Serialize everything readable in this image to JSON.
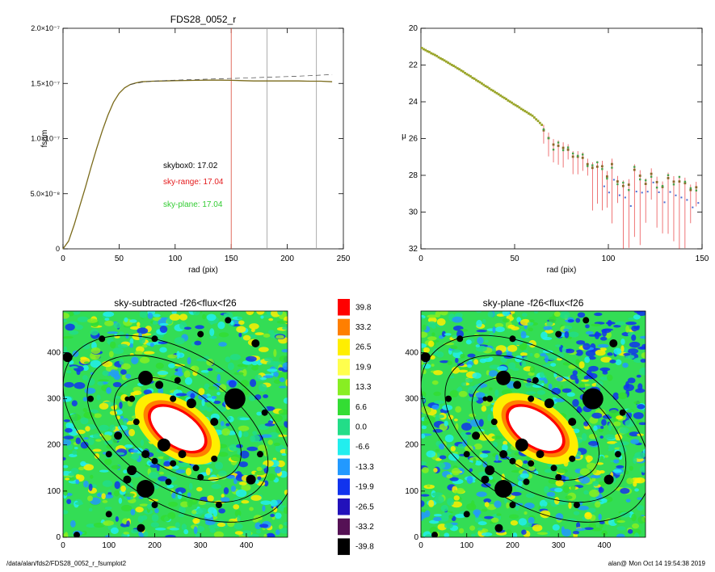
{
  "colors": {
    "sky_range": "#e41a1c",
    "sky_plane": "#33cc33",
    "skybox": "#000000",
    "curve": "#7a6a1a",
    "marker_red": "#d94a3a",
    "marker_gray": "#999999"
  },
  "footer": {
    "path": "/data/alan/fds2/FDS28_0052_r_fsumplot2",
    "stamp": "alan@  Mon Oct 14 19:54:38 2019"
  },
  "chart_data": [
    {
      "id": "fsum",
      "type": "line",
      "title": "FDS28_0052_r",
      "xlabel": "rad (pix)",
      "ylabel": "fsum",
      "xlim": [
        0,
        250
      ],
      "ylim": [
        0,
        2e-07
      ],
      "xticks": [
        0,
        50,
        100,
        150,
        200,
        250
      ],
      "yticks": [
        {
          "v": 0,
          "label": "0"
        },
        {
          "v": 5e-08,
          "label": "5.0×10⁻⁸"
        },
        {
          "v": 1e-07,
          "label": "1.0×10⁻⁷"
        },
        {
          "v": 1.5e-07,
          "label": "1.5×10⁻⁷"
        },
        {
          "v": 2e-07,
          "label": "2.0×10⁻⁷"
        }
      ],
      "vlines": [
        {
          "x": 150,
          "color": "marker_red"
        },
        {
          "x": 182,
          "color": "marker_gray"
        },
        {
          "x": 226,
          "color": "marker_gray"
        }
      ],
      "series": [
        {
          "style": "solid",
          "x": [
            0,
            5,
            10,
            15,
            20,
            25,
            30,
            35,
            40,
            45,
            50,
            55,
            60,
            65,
            70,
            80,
            90,
            100,
            110,
            120,
            130,
            140,
            150,
            160,
            170,
            180,
            190,
            200,
            210,
            220,
            230,
            240
          ],
          "y": [
            0,
            7e-09,
            2.2e-08,
            3.9e-08,
            5.6e-08,
            7.4e-08,
            9.1e-08,
            1.07e-07,
            1.21e-07,
            1.33e-07,
            1.41e-07,
            1.46e-07,
            1.49e-07,
            1.505e-07,
            1.515e-07,
            1.52e-07,
            1.522e-07,
            1.525e-07,
            1.527e-07,
            1.528e-07,
            1.53e-07,
            1.53e-07,
            1.528e-07,
            1.525e-07,
            1.522e-07,
            1.522e-07,
            1.522e-07,
            1.522e-07,
            1.522e-07,
            1.52e-07,
            1.52e-07,
            1.515e-07
          ]
        },
        {
          "style": "dashed",
          "x": [
            60,
            70,
            80,
            90,
            100,
            120,
            140,
            160,
            180,
            200,
            220,
            240
          ],
          "y": [
            1.49e-07,
            1.51e-07,
            1.52e-07,
            1.525e-07,
            1.53e-07,
            1.536e-07,
            1.542e-07,
            1.548e-07,
            1.555e-07,
            1.562e-07,
            1.57e-07,
            1.58e-07
          ]
        }
      ],
      "annotations": [
        {
          "key": "skybox",
          "text": "skybox0: 17.02",
          "color": "skybox"
        },
        {
          "key": "sky_range",
          "text": "sky-range: 17.04",
          "color": "sky_range"
        },
        {
          "key": "sky_plane",
          "text": "sky-plane: 17.04",
          "color": "sky_plane"
        }
      ]
    },
    {
      "id": "mu",
      "type": "scatter",
      "title": "",
      "xlabel": "rad (pix)",
      "ylabel": "μ",
      "xlim": [
        0,
        150
      ],
      "ylim": [
        32,
        20
      ],
      "xticks": [
        0,
        50,
        100,
        150
      ],
      "yticks": [
        20,
        22,
        24,
        26,
        28,
        30,
        32
      ],
      "profile": {
        "x": [
          0,
          10,
          20,
          30,
          40,
          50,
          60,
          65,
          70,
          80,
          90,
          100,
          110,
          120,
          130,
          140,
          150
        ],
        "y": [
          21.05,
          21.6,
          22.2,
          22.85,
          23.5,
          24.15,
          24.8,
          25.3,
          26.3,
          26.8,
          27.3,
          27.8,
          28.1,
          28.4,
          28.6,
          28.8,
          28.9
        ]
      }
    },
    {
      "id": "skysub",
      "type": "heatmap",
      "title": "sky-subtracted -f26<flux<f26",
      "xlim": [
        0,
        490
      ],
      "ylim": [
        0,
        490
      ],
      "xticks": [
        0,
        100,
        200,
        300,
        400
      ],
      "yticks": [
        0,
        100,
        200,
        300,
        400
      ]
    },
    {
      "id": "skyplane",
      "type": "heatmap",
      "title": "sky-plane -f26<flux<f26",
      "xlim": [
        0,
        490
      ],
      "ylim": [
        0,
        490
      ],
      "xticks": [
        0,
        100,
        200,
        300,
        400
      ],
      "yticks": [
        0,
        100,
        200,
        300,
        400
      ]
    },
    {
      "id": "colorbar",
      "type": "table",
      "levels": [
        {
          "label": "39.8",
          "color": "#ff0000"
        },
        {
          "label": "33.2",
          "color": "#ff7f00"
        },
        {
          "label": "26.5",
          "color": "#ffee00"
        },
        {
          "label": "19.9",
          "color": "#ffff4d"
        },
        {
          "label": "13.3",
          "color": "#88ee22"
        },
        {
          "label": "6.6",
          "color": "#33dd33"
        },
        {
          "label": "0.0",
          "color": "#22dd88"
        },
        {
          "label": "-6.6",
          "color": "#22eeee"
        },
        {
          "label": "-13.3",
          "color": "#2299ff"
        },
        {
          "label": "-19.9",
          "color": "#1133ee"
        },
        {
          "label": "-26.5",
          "color": "#2211bb"
        },
        {
          "label": "-33.2",
          "color": "#551155"
        },
        {
          "label": "-39.8",
          "color": "#000000"
        }
      ]
    }
  ]
}
